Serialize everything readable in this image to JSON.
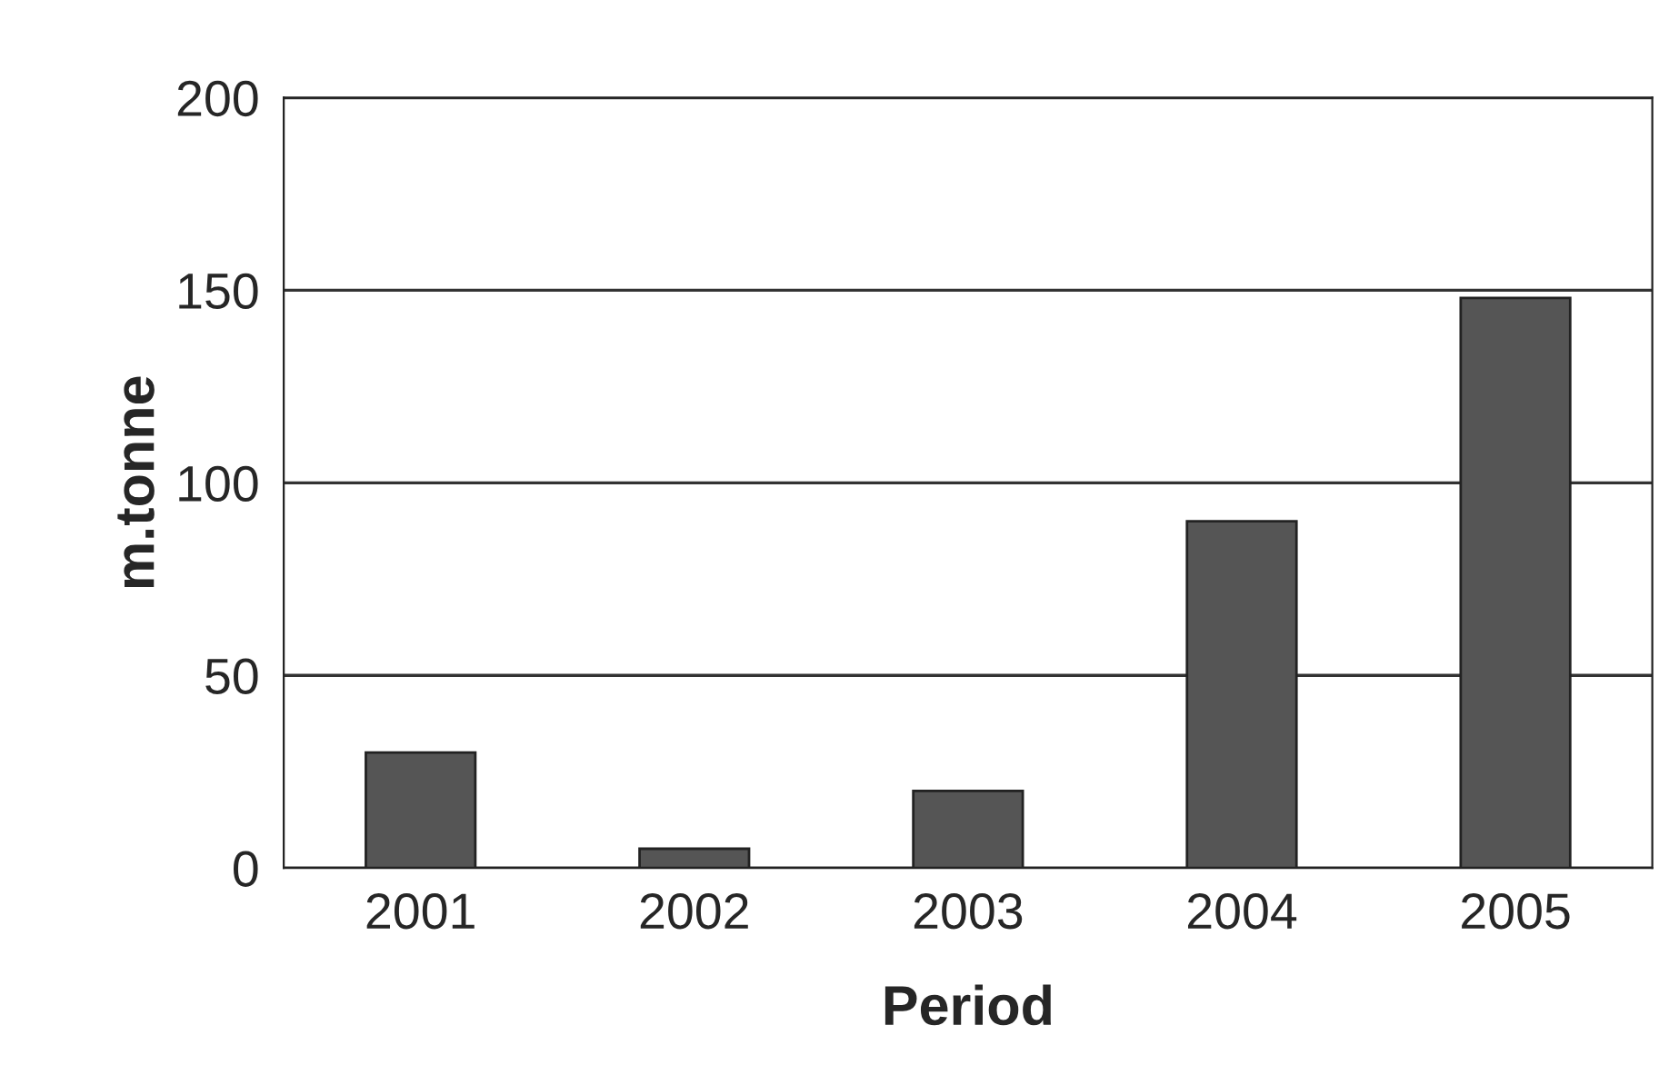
{
  "chart_data": {
    "type": "bar",
    "xlabel": "Period",
    "ylabel": "m.tonne",
    "categories": [
      "2001",
      "2002",
      "2003",
      "2004",
      "2005"
    ],
    "values": [
      30,
      5,
      20,
      90,
      148
    ],
    "color": "#555555",
    "ylim": [
      0,
      200
    ],
    "yticks": [
      0,
      50,
      100,
      150,
      200
    ],
    "grid": "y"
  }
}
